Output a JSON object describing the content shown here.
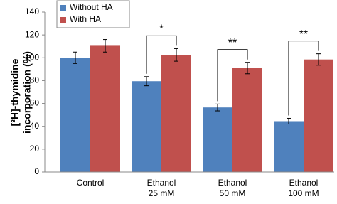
{
  "chart_data": {
    "type": "bar",
    "y_label": [
      "[³H]-thymidine",
      "incorporation (%)"
    ],
    "categories": [
      [
        "Control"
      ],
      [
        "Ethanol",
        "25 mM"
      ],
      [
        "Ethanol",
        "50 mM"
      ],
      [
        "Ethanol",
        "100 mM"
      ]
    ],
    "series": [
      {
        "name": "Without HA",
        "color": "#4f81bd",
        "values": [
          100,
          79.5,
          56.5,
          44.5
        ],
        "errors": [
          5,
          4,
          3,
          2.5
        ]
      },
      {
        "name": "With HA",
        "color": "#c0504d",
        "values": [
          110.5,
          102.5,
          91,
          98.5
        ],
        "errors": [
          5.5,
          5.5,
          5,
          5
        ]
      }
    ],
    "annotations": [
      null,
      "*",
      "**",
      "**"
    ],
    "ylim": [
      0,
      140
    ],
    "yticks": [
      0,
      20,
      40,
      60,
      80,
      100,
      120,
      140
    ],
    "legend": "upper left"
  }
}
